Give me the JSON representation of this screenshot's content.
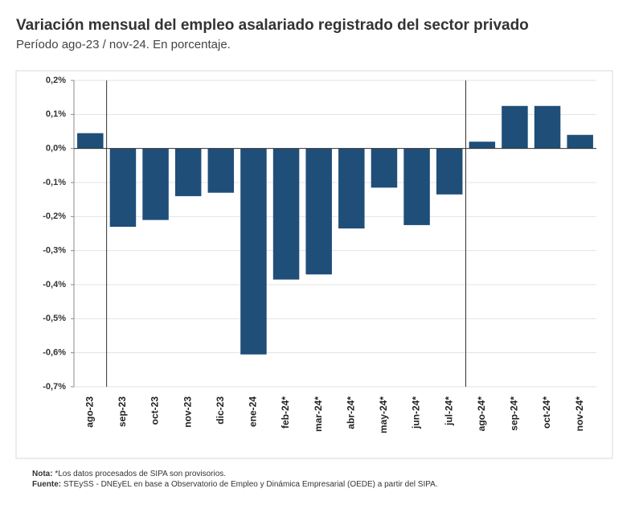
{
  "chart_data": {
    "type": "bar",
    "title": "Variación mensual del empleo asalariado registrado del sector privado",
    "subtitle": "Período ago-23 / nov-24. En porcentaje.",
    "categories": [
      "ago-23",
      "sep-23",
      "oct-23",
      "nov-23",
      "dic-23",
      "ene-24",
      "feb-24*",
      "mar-24*",
      "abr-24*",
      "may-24*",
      "jun-24*",
      "jul-24*",
      "ago-24*",
      "sep-24*",
      "oct-24*",
      "nov-24*"
    ],
    "values": [
      0.045,
      -0.23,
      -0.21,
      -0.14,
      -0.13,
      -0.605,
      -0.385,
      -0.37,
      -0.235,
      -0.115,
      -0.225,
      -0.135,
      0.02,
      0.125,
      0.125,
      0.04
    ],
    "color": "#1f4e79",
    "ylim": [
      -0.7,
      0.2
    ],
    "yticks": [
      {
        "value": -0.7,
        "label": "-0,7%"
      },
      {
        "value": -0.6,
        "label": "-0,6%"
      },
      {
        "value": -0.5,
        "label": "-0,5%"
      },
      {
        "value": -0.4,
        "label": "-0,4%"
      },
      {
        "value": -0.3,
        "label": "-0,3%"
      },
      {
        "value": -0.2,
        "label": "-0,2%"
      },
      {
        "value": -0.1,
        "label": "-0,1%"
      },
      {
        "value": 0,
        "label": "0,0%"
      },
      {
        "value": 0.1,
        "label": "0,1%"
      },
      {
        "value": 0.2,
        "label": "0,2%"
      }
    ],
    "grid": true,
    "note_label": "Nota:",
    "note": "*Los datos procesados de SIPA son provisorios.",
    "source_label": "Fuente:",
    "source": "STEySS - DNEyEL en base a Observatorio de Empleo y Dinámica Empresarial (OEDE) a partir del SIPA."
  }
}
